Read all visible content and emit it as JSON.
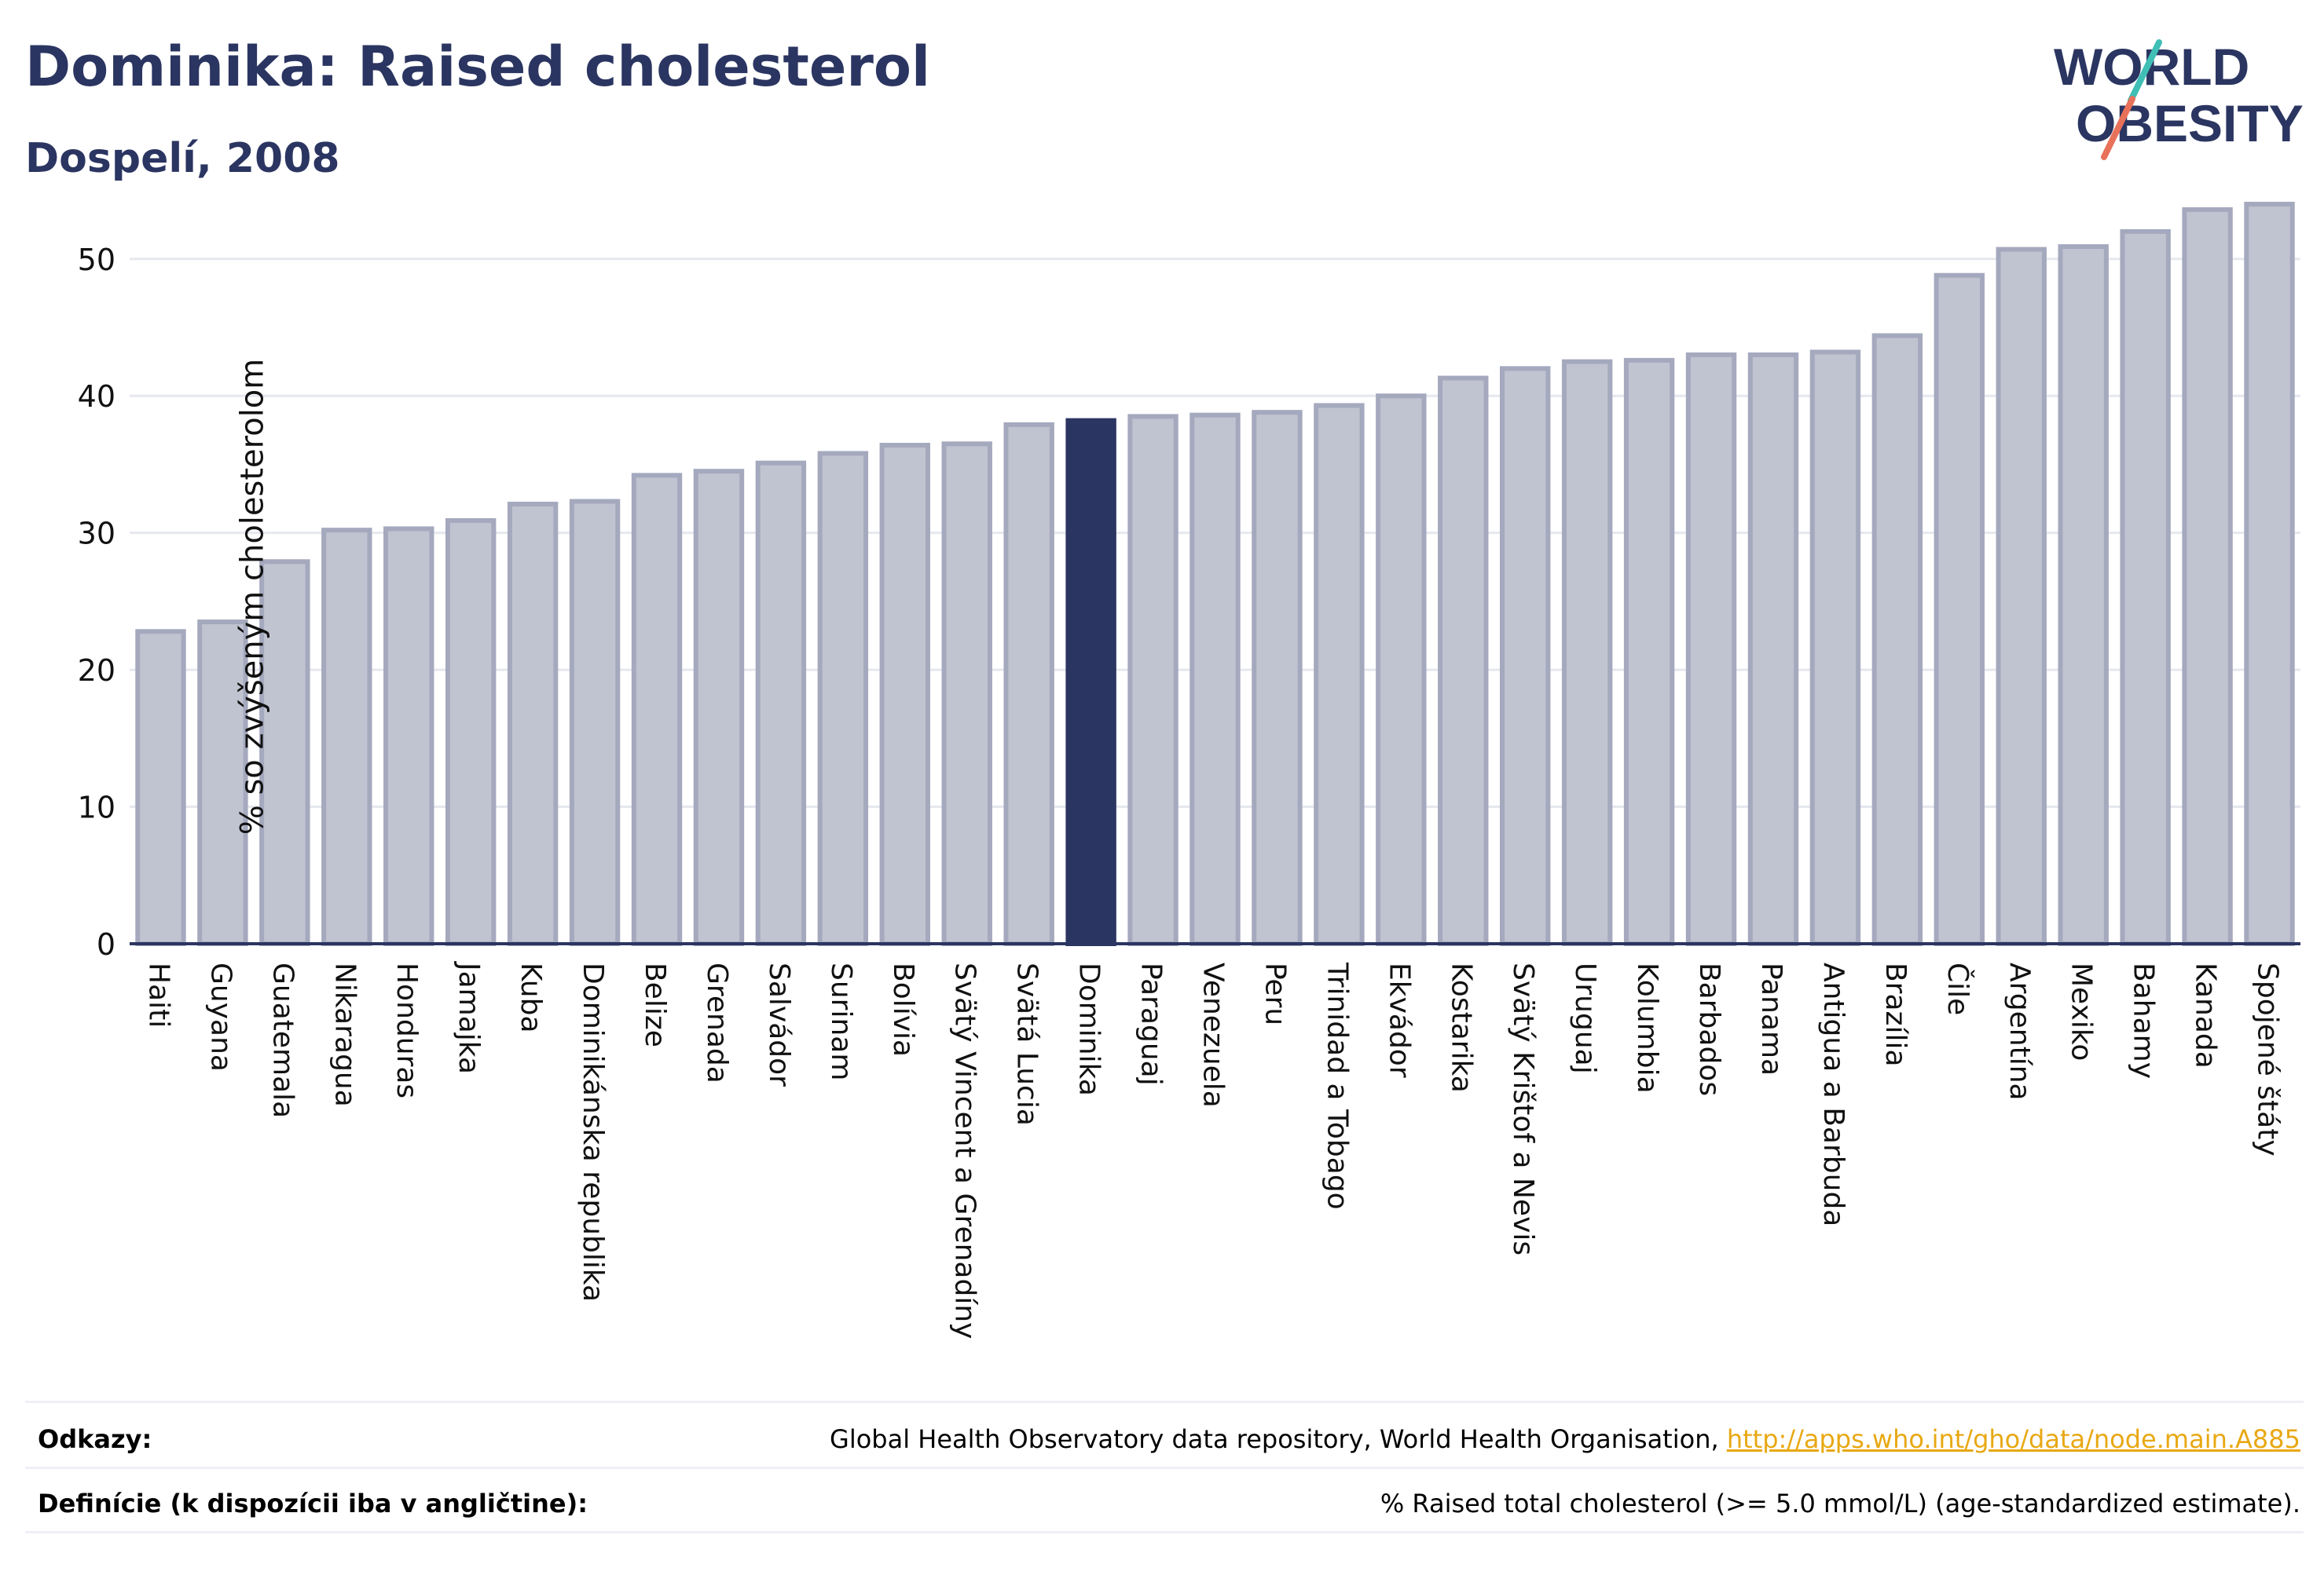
{
  "header": {
    "title": "Dominika: Raised cholesterol",
    "subtitle": "Dospelí, 2008"
  },
  "logo": {
    "line1": "WORLD",
    "line2": "OBESITY"
  },
  "footer": {
    "references_label": "Odkazy:",
    "references_text": "Global Health Observatory data repository, World Health Organisation, ",
    "references_link": "http://apps.who.int/gho/data/node.main.A885",
    "definitions_label": "Definície (k dispozícii iba v angličtine):",
    "definitions_text": "% Raised total cholesterol (>= 5.0 mmol/L) (age-standardized estimate)."
  },
  "colors": {
    "bar": "#c0c3d0",
    "bar_border": "#a5a9be",
    "highlight": "#2b3561",
    "title": "#2b3561",
    "link": "#e8a813"
  },
  "chart_data": {
    "type": "bar",
    "ylabel": "% so zvýšeným cholesterolom",
    "ylim": [
      0,
      54
    ],
    "yticks": [
      0,
      10,
      20,
      30,
      40,
      50
    ],
    "grid": true,
    "highlight": "Dominika",
    "categories": [
      "Haiti",
      "Guyana",
      "Guatemala",
      "Nikaragua",
      "Honduras",
      "Jamajka",
      "Kuba",
      "Dominikánska republika",
      "Belize",
      "Grenada",
      "Salvádor",
      "Surinam",
      "Bolívia",
      "Svätý Vincent a Grenadíny",
      "Svätá Lucia",
      "Dominika",
      "Paraguaj",
      "Venezuela",
      "Peru",
      "Trinidad a Tobago",
      "Ekvádor",
      "Kostarika",
      "Svätý Krištof a Nevis",
      "Uruguaj",
      "Kolumbia",
      "Barbados",
      "Panama",
      "Antigua a Barbuda",
      "Brazília",
      "Čile",
      "Argentína",
      "Mexiko",
      "Bahamy",
      "Kanada",
      "Spojené štáty"
    ],
    "values": [
      22.8,
      23.5,
      27.9,
      30.2,
      30.3,
      30.9,
      32.1,
      32.3,
      34.2,
      34.5,
      35.1,
      35.8,
      36.4,
      36.5,
      37.9,
      38.2,
      38.5,
      38.6,
      38.8,
      39.3,
      40.0,
      41.3,
      42.0,
      42.5,
      42.6,
      43.0,
      43.0,
      43.2,
      44.4,
      48.8,
      50.7,
      50.9,
      52.0,
      53.6,
      54.0
    ]
  }
}
